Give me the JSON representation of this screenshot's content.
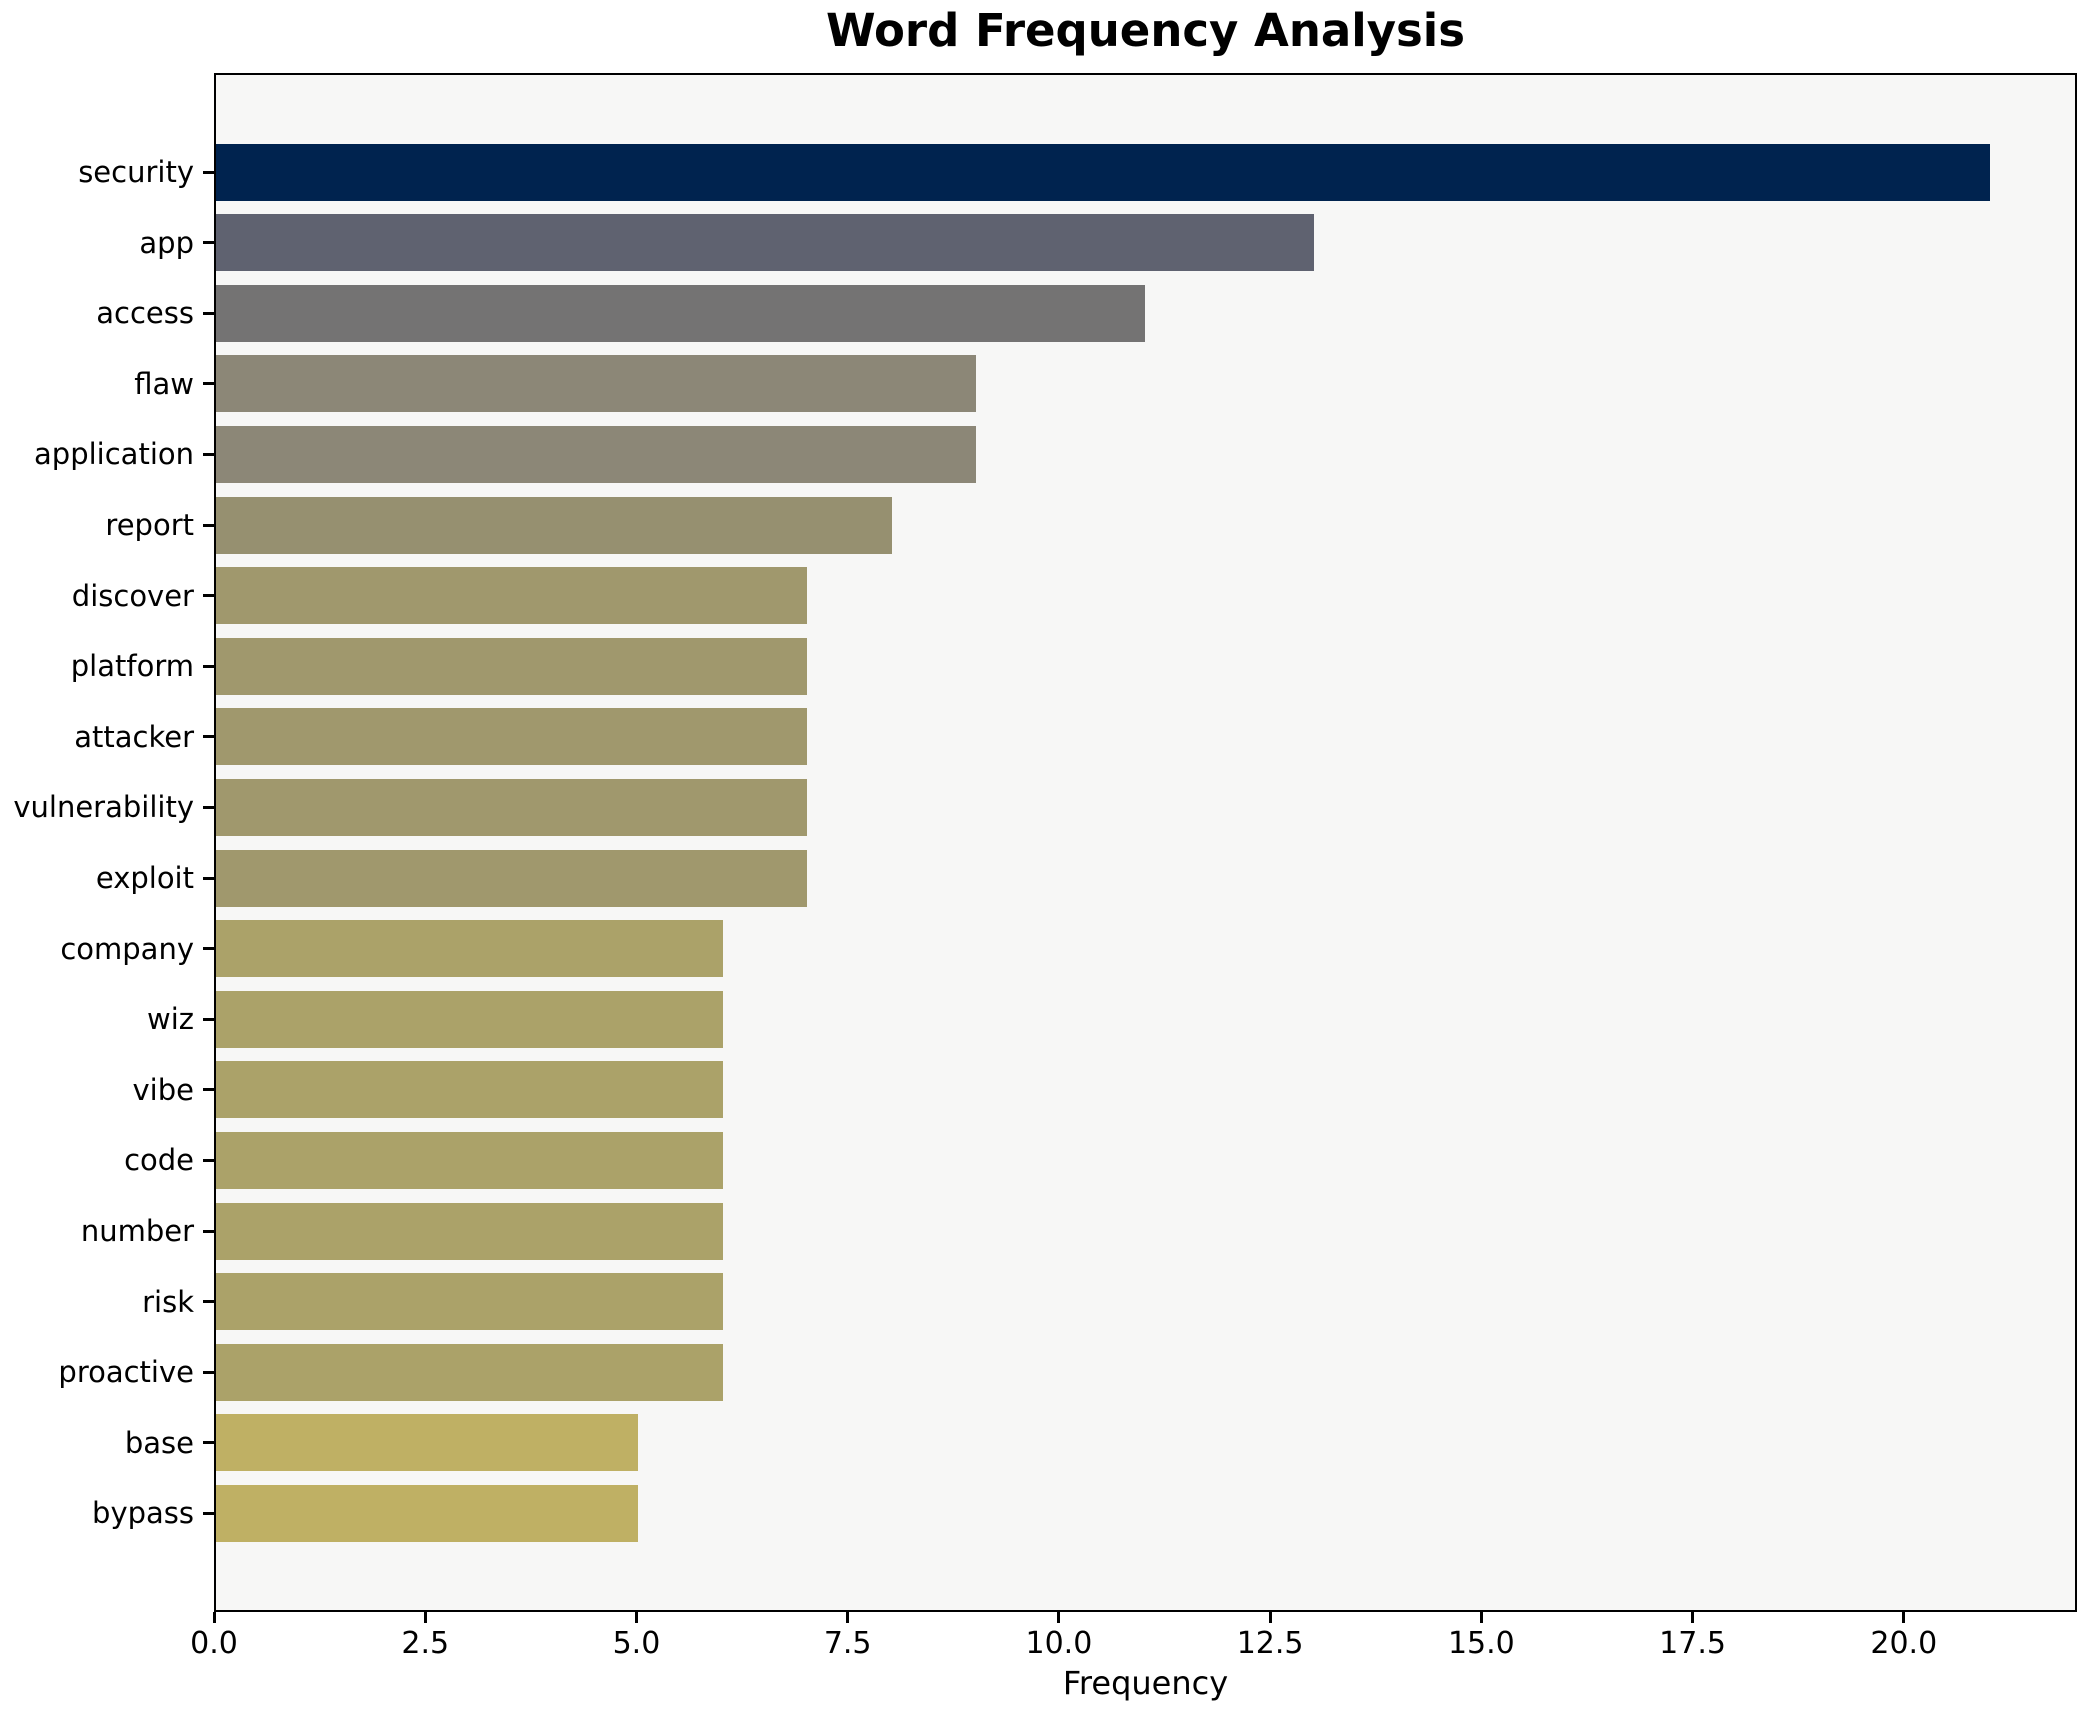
{
  "chart_data": {
    "type": "bar",
    "orientation": "horizontal",
    "title": "Word Frequency Analysis",
    "xlabel": "Frequency",
    "ylabel": "",
    "categories": [
      "security",
      "app",
      "access",
      "flaw",
      "application",
      "report",
      "discover",
      "platform",
      "attacker",
      "vulnerability",
      "exploit",
      "company",
      "wiz",
      "vibe",
      "code",
      "number",
      "risk",
      "proactive",
      "base",
      "bypass"
    ],
    "values": [
      21,
      13,
      11,
      9,
      9,
      8,
      7,
      7,
      7,
      7,
      7,
      6,
      6,
      6,
      6,
      6,
      6,
      6,
      5,
      5
    ],
    "bar_colors": [
      "#00234f",
      "#5f6270",
      "#747373",
      "#8c8777",
      "#8c8777",
      "#969070",
      "#a0986d",
      "#a0986d",
      "#a0986d",
      "#a0986d",
      "#a0986d",
      "#aba269",
      "#aba269",
      "#aba269",
      "#aba269",
      "#aba269",
      "#aba269",
      "#aba269",
      "#bfb064",
      "#bfb064"
    ],
    "xticks": [
      0.0,
      2.5,
      5.0,
      7.5,
      10.0,
      12.5,
      15.0,
      17.5,
      20.0
    ],
    "xtick_labels": [
      "0.0",
      "2.5",
      "5.0",
      "7.5",
      "10.0",
      "12.5",
      "15.0",
      "17.5",
      "20.0"
    ],
    "xlim": [
      0,
      22.05
    ],
    "grid": false,
    "legend_position": "none",
    "plot_background": "#f7f7f6",
    "figure_background": "#ffffff",
    "spine_color": "#000000"
  }
}
